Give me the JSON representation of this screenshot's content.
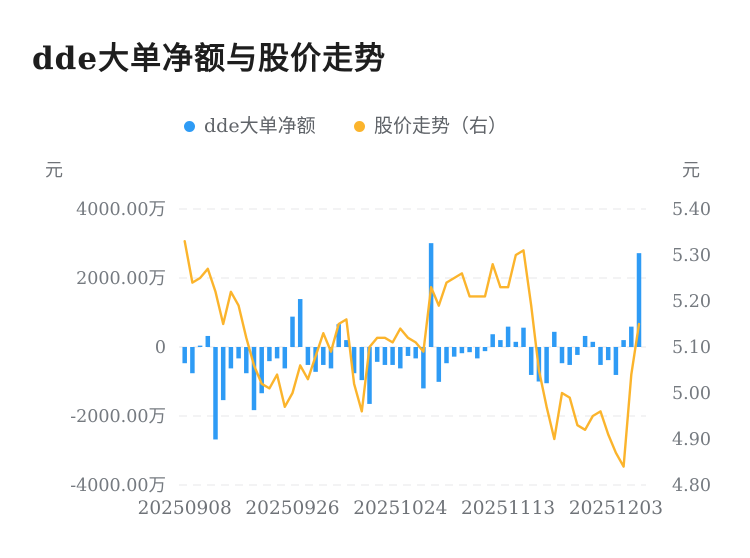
{
  "title": "dde大单净额与股价走势",
  "legend": {
    "items": [
      {
        "label": "dde大单净额",
        "color": "#2E9BF5",
        "marker": "circle"
      },
      {
        "label": "股价走势（右）",
        "color": "#FBB42C",
        "marker": "circle"
      }
    ]
  },
  "axes": {
    "left": {
      "unit": "元",
      "tick_labels": [
        "4000.00万",
        "2000.00万",
        "0",
        "-2000.00万",
        "-4000.00万"
      ],
      "tick_values_wan": [
        4000,
        2000,
        0,
        -2000,
        -4000
      ]
    },
    "right": {
      "unit": "元",
      "tick_labels": [
        "5.40",
        "5.30",
        "5.20",
        "5.10",
        "5.00",
        "4.90",
        "4.80"
      ],
      "tick_values": [
        5.4,
        5.3,
        5.2,
        5.1,
        5.0,
        4.9,
        4.8
      ]
    },
    "x": {
      "tick_labels": [
        "20250908",
        "20250926",
        "20251024",
        "20251113",
        "20251203"
      ]
    }
  },
  "chart_data": {
    "type": "combo",
    "title": "dde大单净额与股价走势",
    "num_points": 60,
    "x_tick_labels": [
      "20250908",
      "20250926",
      "20251024",
      "20251113",
      "20251203"
    ],
    "x_tick_every": 14,
    "grid": "dashed-horizontal",
    "left_ylim_wan": [
      -4000,
      4000
    ],
    "right_ylim": [
      4.8,
      5.4
    ],
    "legend_position": "top",
    "series": [
      {
        "name": "dde大单净额",
        "type": "bar",
        "axis": "left",
        "unit": "万元",
        "color": "#2E9BF5",
        "values": [
          -470,
          -760,
          40,
          320,
          -2680,
          -1540,
          -620,
          -330,
          -760,
          -1830,
          -1340,
          -410,
          -330,
          -620,
          880,
          1390,
          -520,
          -720,
          -520,
          -620,
          660,
          200,
          -760,
          -960,
          -1650,
          -430,
          -520,
          -520,
          -620,
          -260,
          -330,
          -1200,
          3010,
          -1010,
          -470,
          -280,
          -180,
          -150,
          -330,
          -120,
          370,
          200,
          590,
          150,
          560,
          -810,
          -1000,
          -1050,
          440,
          -470,
          -520,
          -230,
          320,
          150,
          -520,
          -380,
          -810,
          200,
          590,
          2720
        ]
      },
      {
        "name": "股价走势（右）",
        "type": "line",
        "axis": "right",
        "unit": "元",
        "color": "#FBB42C",
        "values": [
          5.33,
          5.24,
          5.25,
          5.27,
          5.22,
          5.15,
          5.22,
          5.19,
          5.12,
          5.06,
          5.02,
          5.01,
          5.04,
          4.97,
          5.0,
          5.06,
          5.03,
          5.08,
          5.13,
          5.09,
          5.15,
          5.16,
          5.02,
          4.96,
          5.1,
          5.12,
          5.12,
          5.11,
          5.14,
          5.12,
          5.11,
          5.09,
          5.23,
          5.19,
          5.24,
          5.25,
          5.26,
          5.21,
          5.21,
          5.21,
          5.28,
          5.23,
          5.23,
          5.3,
          5.31,
          5.19,
          5.05,
          4.97,
          4.9,
          5.0,
          4.99,
          4.93,
          4.92,
          4.95,
          4.96,
          4.91,
          4.87,
          4.84,
          5.04,
          5.15
        ]
      }
    ]
  },
  "colors": {
    "background": "#ffffff",
    "grid": "#e7e7ea",
    "axis_text": "#757a80",
    "title_text": "#1e1e1e",
    "legend_text": "#5f6368",
    "bar": "#2E9BF5",
    "line": "#FBB42C"
  }
}
